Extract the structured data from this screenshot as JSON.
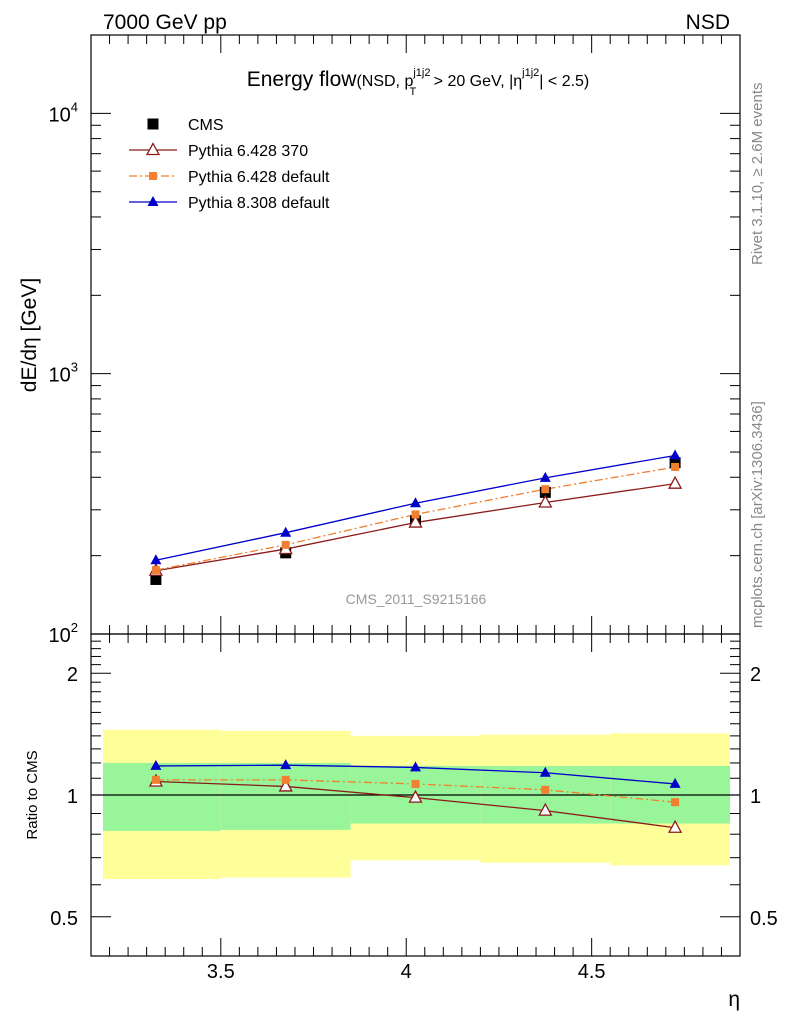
{
  "header": {
    "left": "7000 GeV pp",
    "right": "NSD"
  },
  "side_labels": {
    "rivet": "Rivet 3.1.10, ≥ 2.6M events",
    "mcplots": "mcplots.cern.ch [arXiv:1306.3436]"
  },
  "watermark": "CMS_2011_S9215166",
  "colors": {
    "cms": "#000000",
    "py6_370": "#8b1a1a",
    "py6_default": "#f08030",
    "py8": "#0000cc",
    "band_inner": "#99f599",
    "band_outer": "#ffff99"
  },
  "chart_data": [
    {
      "type": "line",
      "title": "Energy flow",
      "title_detail": {
        "open": "(NSD, p",
        "sup1": "j1j2",
        "sub1": "T",
        "mid": " > 20 GeV, |η",
        "sup2": "j1j2",
        "close": "| < 2.5)"
      },
      "ylabel": "dE/dη [GeV]",
      "yscale": "log",
      "ylim": [
        100,
        20000
      ],
      "xlim": [
        3.15,
        4.9
      ],
      "ytick_labels": [
        {
          "base": "10",
          "exp": "2",
          "value": 100
        },
        {
          "base": "10",
          "exp": "3",
          "value": 1000
        },
        {
          "base": "10",
          "exp": "4",
          "value": 10000
        }
      ],
      "legend_position": "top-left",
      "x": [
        3.325,
        3.675,
        4.025,
        4.375,
        4.725
      ],
      "series": [
        {
          "name": "CMS",
          "values": [
            162,
            205,
            272,
            350,
            455
          ]
        },
        {
          "name": "Pythia 6.428 370",
          "values": [
            175,
            212,
            268,
            320,
            378
          ]
        },
        {
          "name": "Pythia 6.428 default",
          "values": [
            176,
            220,
            288,
            360,
            438
          ]
        },
        {
          "name": "Pythia 8.308 default",
          "values": [
            192,
            245,
            318,
            398,
            485
          ]
        }
      ]
    },
    {
      "type": "line",
      "ylabel": "Ratio to CMS",
      "xlabel": "η",
      "yscale": "log",
      "ylim": [
        0.4,
        2.5
      ],
      "xlim": [
        3.15,
        4.9
      ],
      "ytick_labels": [
        "0.5",
        "1",
        "2"
      ],
      "xtick_labels": [
        "3.5",
        "4",
        "4.5"
      ],
      "reference_line": 1,
      "x": [
        3.325,
        3.675,
        4.025,
        4.375,
        4.725
      ],
      "bins": [
        {
          "lo": 3.15,
          "hi": 3.5,
          "inner": [
            0.815,
            1.2
          ],
          "outer": [
            0.62,
            1.45
          ]
        },
        {
          "lo": 3.5,
          "hi": 3.85,
          "inner": [
            0.82,
            1.2
          ],
          "outer": [
            0.625,
            1.44
          ]
        },
        {
          "lo": 3.85,
          "hi": 4.2,
          "inner": [
            0.85,
            1.18
          ],
          "outer": [
            0.69,
            1.4
          ]
        },
        {
          "lo": 4.2,
          "hi": 4.55,
          "inner": [
            0.85,
            1.18
          ],
          "outer": [
            0.68,
            1.41
          ]
        },
        {
          "lo": 4.55,
          "hi": 4.9,
          "inner": [
            0.85,
            1.18
          ],
          "outer": [
            0.67,
            1.42
          ]
        }
      ],
      "series": [
        {
          "name": "Pythia 6.428 370",
          "values": [
            1.08,
            1.05,
            0.985,
            0.915,
            0.83
          ]
        },
        {
          "name": "Pythia 6.428 default",
          "values": [
            1.09,
            1.09,
            1.065,
            1.03,
            0.96
          ]
        },
        {
          "name": "Pythia 8.308 default",
          "values": [
            1.18,
            1.185,
            1.17,
            1.135,
            1.065
          ]
        }
      ]
    }
  ]
}
